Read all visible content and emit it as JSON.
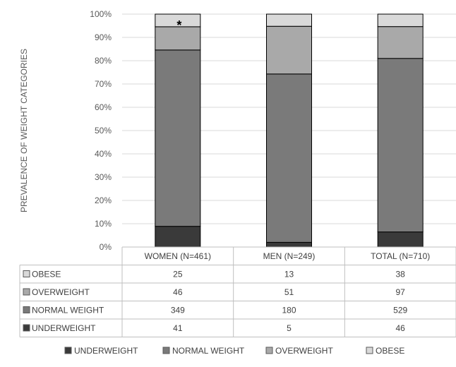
{
  "chart_data": {
    "type": "bar",
    "stacked": "percent",
    "ylabel": "PREVALENCE  OF WEIGHT CATEGORIES",
    "y_ticks": [
      "0%",
      "10%",
      "20%",
      "30%",
      "40%",
      "50%",
      "60%",
      "70%",
      "80%",
      "90%",
      "100%"
    ],
    "ylim": [
      0,
      100
    ],
    "grid": true,
    "categories": [
      "WOMEN (N=461)",
      "MEN (N=249)",
      "TOTAL (N=710)"
    ],
    "series": [
      {
        "name": "UNDERWEIGHT",
        "values": [
          41,
          5,
          46
        ],
        "color": "#3a3a3a"
      },
      {
        "name": "NORMAL WEIGHT",
        "values": [
          349,
          180,
          529
        ],
        "color": "#7a7a7a"
      },
      {
        "name": "OVERWEIGHT",
        "values": [
          46,
          51,
          97
        ],
        "color": "#a9a9a9"
      },
      {
        "name": "OBESE",
        "values": [
          25,
          13,
          38
        ],
        "color": "#d9d9d9"
      }
    ],
    "table_row_order": [
      "OBESE",
      "OVERWEIGHT",
      "NORMAL WEIGHT",
      "UNDERWEIGHT"
    ],
    "legend": {
      "position": "bottom",
      "entries": [
        "UNDERWEIGHT",
        "NORMAL WEIGHT",
        "OVERWEIGHT",
        "OBESE"
      ]
    },
    "annotations": [
      {
        "text": "*",
        "category": "WOMEN (N=461)",
        "series": "OBESE"
      }
    ]
  }
}
